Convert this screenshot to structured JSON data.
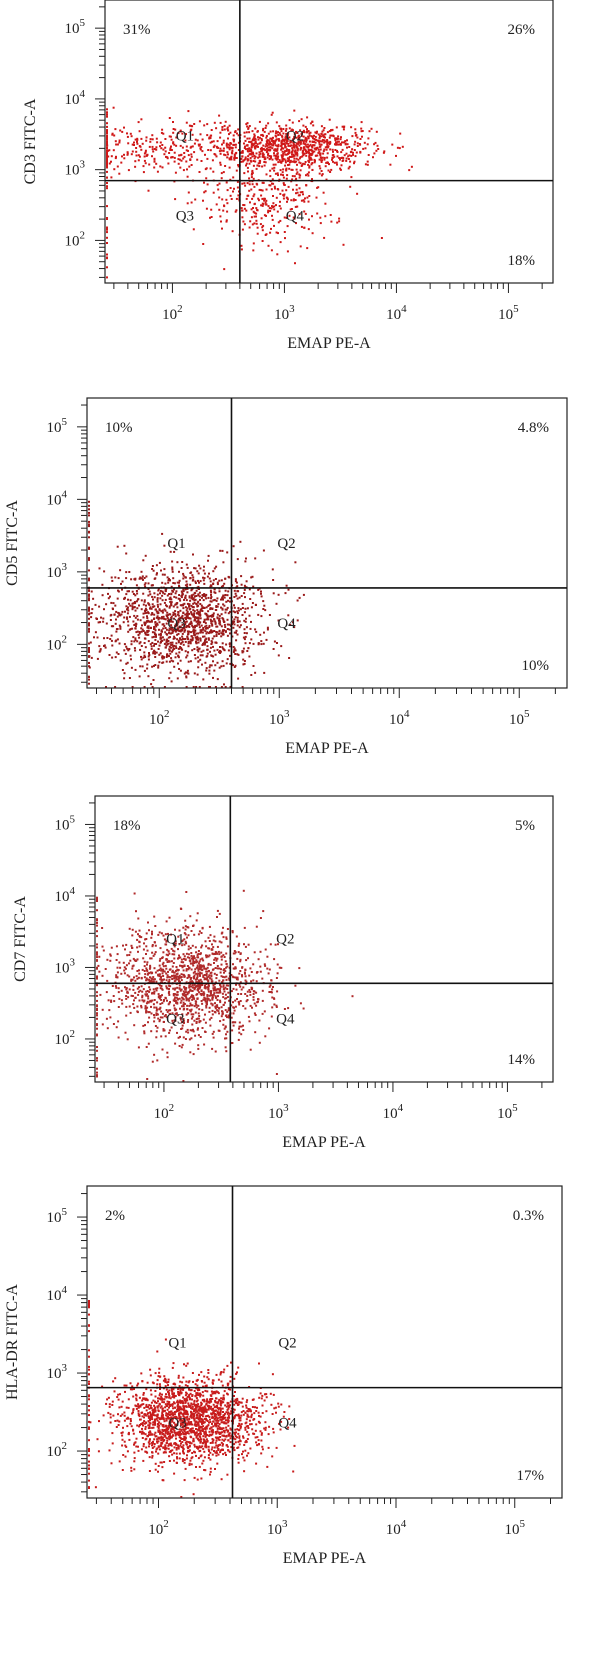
{
  "chart_data": [
    {
      "type": "scatter",
      "ylabel": "CD3 FITC-A",
      "xlabel": "EMAP PE-A",
      "x_ticks": [
        "10^2",
        "10^3",
        "10^4",
        "10^5"
      ],
      "y_ticks": [
        "10^2",
        "10^3",
        "10^4",
        "10^5"
      ],
      "xlim": [
        25,
        250000
      ],
      "ylim": [
        25,
        250000
      ],
      "log_scale": true,
      "gate_x": 400,
      "gate_y": 700,
      "quadrant_labels": [
        "Q1",
        "Q2",
        "Q3",
        "Q4"
      ],
      "quadrant_percentages": {
        "Q1": "31%",
        "Q2": "26%",
        "Q4": "18%"
      },
      "point_color": "#d01818",
      "clusters": [
        {
          "center": [
            1200,
            2200
          ],
          "spread": [
            0.35,
            0.16
          ],
          "fraction": 0.55
        },
        {
          "center": [
            700,
            450
          ],
          "spread": [
            0.3,
            0.35
          ],
          "fraction": 0.25
        },
        {
          "center": [
            90,
            2000
          ],
          "spread": [
            0.45,
            0.18
          ],
          "fraction": 0.2
        }
      ],
      "events": 1500
    },
    {
      "type": "scatter",
      "ylabel": "CD5 FITC-A",
      "xlabel": "EMAP PE-A",
      "x_ticks": [
        "10^2",
        "10^3",
        "10^4",
        "10^5"
      ],
      "y_ticks": [
        "10^2",
        "10^3",
        "10^4",
        "10^5"
      ],
      "xlim": [
        25,
        250000
      ],
      "ylim": [
        25,
        250000
      ],
      "log_scale": true,
      "gate_x": 400,
      "gate_y": 600,
      "quadrant_labels": [
        "Q1",
        "Q2",
        "Q3",
        "Q4"
      ],
      "quadrant_percentages": {
        "Q1": "10%",
        "Q2": "4.8%",
        "Q4": "10%"
      },
      "point_color": "#9a1a1a",
      "clusters": [
        {
          "center": [
            150,
            220
          ],
          "spread": [
            0.35,
            0.38
          ],
          "fraction": 1.0
        }
      ],
      "events": 1500
    },
    {
      "type": "scatter",
      "ylabel": "CD7 FITC-A",
      "xlabel": "EMAP PE-A",
      "x_ticks": [
        "10^2",
        "10^3",
        "10^4",
        "10^5"
      ],
      "y_ticks": [
        "10^2",
        "10^3",
        "10^4",
        "10^5"
      ],
      "xlim": [
        25,
        250000
      ],
      "ylim": [
        25,
        250000
      ],
      "log_scale": true,
      "gate_x": 380,
      "gate_y": 600,
      "quadrant_labels": [
        "Q1",
        "Q2",
        "Q3",
        "Q4"
      ],
      "quadrant_percentages": {
        "Q1": "18%",
        "Q2": "5%",
        "Q4": "14%"
      },
      "point_color": "#b02a2a",
      "clusters": [
        {
          "center": [
            160,
            600
          ],
          "spread": [
            0.35,
            0.4
          ],
          "fraction": 1.0
        }
      ],
      "events": 1400
    },
    {
      "type": "scatter",
      "ylabel": "HLA-DR FITC-A",
      "xlabel": "EMAP PE-A",
      "x_ticks": [
        "10^2",
        "10^3",
        "10^4",
        "10^5"
      ],
      "y_ticks": [
        "10^2",
        "10^3",
        "10^4",
        "10^5"
      ],
      "xlim": [
        25,
        250000
      ],
      "ylim": [
        25,
        250000
      ],
      "log_scale": true,
      "gate_x": 420,
      "gate_y": 650,
      "quadrant_labels": [
        "Q1",
        "Q2",
        "Q3",
        "Q4"
      ],
      "quadrant_percentages": {
        "Q1": "2%",
        "Q2": "0.3%",
        "Q4": "17%"
      },
      "point_color": "#c81c1c",
      "clusters": [
        {
          "center": [
            180,
            250
          ],
          "spread": [
            0.3,
            0.28
          ],
          "fraction": 1.0
        }
      ],
      "events": 1800
    }
  ]
}
